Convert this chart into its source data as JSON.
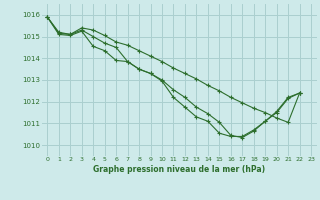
{
  "title": "Graphe pression niveau de la mer (hPa)",
  "background_color": "#ceeaea",
  "grid_color": "#aacfcf",
  "line_color": "#2d6e2d",
  "xlim": [
    -0.5,
    23.5
  ],
  "ylim": [
    1009.5,
    1016.5
  ],
  "yticks": [
    1010,
    1011,
    1012,
    1013,
    1014,
    1015,
    1016
  ],
  "xticks": [
    0,
    1,
    2,
    3,
    4,
    5,
    6,
    7,
    8,
    9,
    10,
    11,
    12,
    13,
    14,
    15,
    16,
    17,
    18,
    19,
    20,
    21,
    22,
    23
  ],
  "series": [
    {
      "x": [
        0,
        1,
        2,
        3,
        4,
        5,
        6,
        7,
        8,
        9,
        10,
        11,
        12,
        13,
        14,
        15,
        16,
        17,
        18,
        19,
        20,
        21,
        22
      ],
      "y": [
        1015.9,
        1015.15,
        1015.1,
        1015.3,
        1015.0,
        1014.7,
        1014.5,
        1013.85,
        1013.5,
        1013.3,
        1013.0,
        1012.55,
        1012.2,
        1011.75,
        1011.45,
        1011.05,
        1010.45,
        1010.35,
        1010.65,
        1011.1,
        1011.5,
        1012.15,
        1012.4
      ]
    },
    {
      "x": [
        0,
        1,
        2,
        3,
        4,
        5,
        6,
        7,
        8,
        9,
        10,
        11,
        12,
        13,
        14,
        15,
        16,
        17,
        18,
        19,
        20,
        21,
        22
      ],
      "y": [
        1015.9,
        1015.2,
        1015.1,
        1015.4,
        1015.3,
        1015.05,
        1014.75,
        1014.6,
        1014.35,
        1014.1,
        1013.85,
        1013.55,
        1013.3,
        1013.05,
        1012.75,
        1012.5,
        1012.2,
        1011.95,
        1011.7,
        1011.5,
        1011.25,
        1011.05,
        1012.4
      ]
    },
    {
      "x": [
        0,
        1,
        2,
        3,
        4,
        5,
        6,
        7,
        8,
        9,
        10,
        11,
        12,
        13,
        14,
        15,
        16,
        17,
        18,
        19,
        20,
        21,
        22
      ],
      "y": [
        1015.9,
        1015.1,
        1015.05,
        1015.25,
        1014.55,
        1014.35,
        1013.9,
        1013.85,
        1013.5,
        1013.3,
        1012.95,
        1012.2,
        1011.75,
        1011.3,
        1011.1,
        1010.55,
        1010.4,
        1010.4,
        1010.7,
        1011.1,
        1011.55,
        1012.2,
        1012.4
      ]
    }
  ]
}
